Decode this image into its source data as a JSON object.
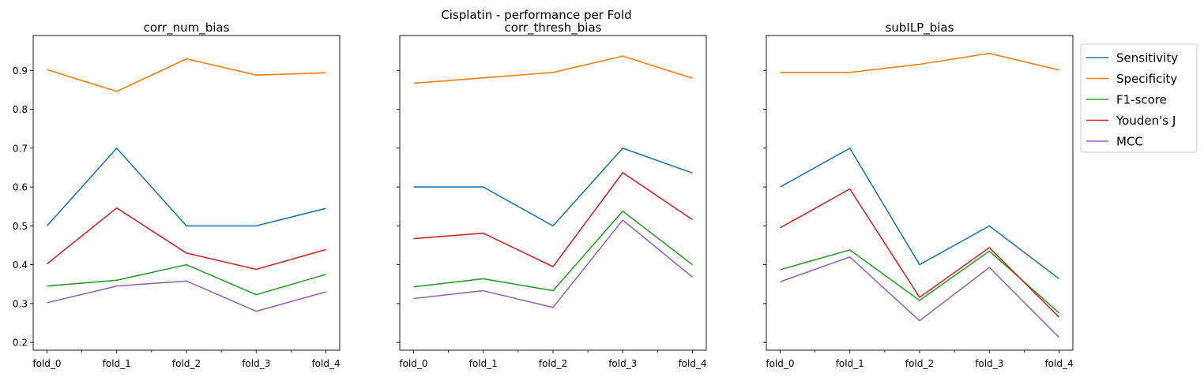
{
  "figure": {
    "suptitle": "Cisplatin - performance per Fold"
  },
  "chart_data": [
    {
      "type": "line",
      "title": "corr_num_bias",
      "categories": [
        "fold_0",
        "fold_1",
        "fold_2",
        "fold_3",
        "fold_4"
      ],
      "ylim": [
        0.18,
        0.99
      ],
      "yticks": [
        0.2,
        0.3,
        0.4,
        0.5,
        0.6,
        0.7,
        0.8,
        0.9
      ],
      "ytick_labels": [
        "0.2",
        "0.3",
        "0.4",
        "0.5",
        "0.6",
        "0.7",
        "0.8",
        "0.9"
      ],
      "series": [
        {
          "name": "Sensitivity",
          "values": [
            0.5,
            0.7,
            0.5,
            0.5,
            0.545
          ]
        },
        {
          "name": "Specificity",
          "values": [
            0.902,
            0.846,
            0.93,
            0.888,
            0.894
          ]
        },
        {
          "name": "F1-score",
          "values": [
            0.345,
            0.36,
            0.4,
            0.323,
            0.375
          ]
        },
        {
          "name": "Youden's J",
          "values": [
            0.402,
            0.546,
            0.43,
            0.388,
            0.439
          ]
        },
        {
          "name": "MCC",
          "values": [
            0.302,
            0.345,
            0.358,
            0.28,
            0.33
          ]
        }
      ]
    },
    {
      "type": "line",
      "title": "corr_thresh_bias",
      "categories": [
        "fold_0",
        "fold_1",
        "fold_2",
        "fold_3",
        "fold_4"
      ],
      "ylim": [
        0.18,
        0.99
      ],
      "yticks": [
        0.2,
        0.3,
        0.4,
        0.5,
        0.6,
        0.7,
        0.8,
        0.9
      ],
      "ytick_labels": [],
      "series": [
        {
          "name": "Sensitivity",
          "values": [
            0.6,
            0.6,
            0.5,
            0.7,
            0.636
          ]
        },
        {
          "name": "Specificity",
          "values": [
            0.867,
            0.881,
            0.895,
            0.937,
            0.88
          ]
        },
        {
          "name": "F1-score",
          "values": [
            0.343,
            0.364,
            0.333,
            0.538,
            0.4
          ]
        },
        {
          "name": "Youden's J",
          "values": [
            0.467,
            0.481,
            0.395,
            0.637,
            0.516
          ]
        },
        {
          "name": "MCC",
          "values": [
            0.313,
            0.333,
            0.29,
            0.515,
            0.368
          ]
        }
      ]
    },
    {
      "type": "line",
      "title": "subILP_bias",
      "categories": [
        "fold_0",
        "fold_1",
        "fold_2",
        "fold_3",
        "fold_4"
      ],
      "ylim": [
        0.18,
        0.99
      ],
      "yticks": [
        0.2,
        0.3,
        0.4,
        0.5,
        0.6,
        0.7,
        0.8,
        0.9
      ],
      "ytick_labels": [],
      "legend": "outside-upper-right",
      "series": [
        {
          "name": "Sensitivity",
          "values": [
            0.6,
            0.7,
            0.4,
            0.5,
            0.364
          ]
        },
        {
          "name": "Specificity",
          "values": [
            0.895,
            0.895,
            0.916,
            0.944,
            0.901
          ]
        },
        {
          "name": "F1-score",
          "values": [
            0.387,
            0.438,
            0.308,
            0.435,
            0.276
          ]
        },
        {
          "name": "Youden's J",
          "values": [
            0.495,
            0.595,
            0.316,
            0.444,
            0.265
          ]
        },
        {
          "name": "MCC",
          "values": [
            0.356,
            0.42,
            0.256,
            0.393,
            0.213
          ]
        }
      ]
    }
  ],
  "legend": {
    "entries": [
      "Sensitivity",
      "Specificity",
      "F1-score",
      "Youden's J",
      "MCC"
    ],
    "colors": [
      "#1f77b4",
      "#ff7f0e",
      "#2ca02c",
      "#d62728",
      "#9467bd"
    ]
  }
}
